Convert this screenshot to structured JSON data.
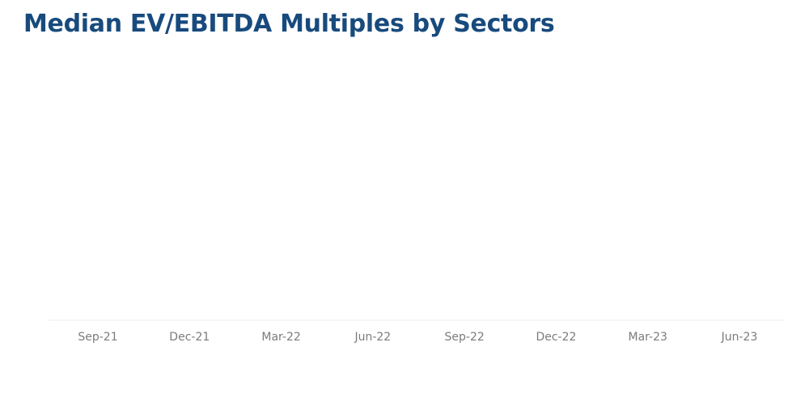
{
  "chart_data": {
    "type": "line",
    "title": "Median EV/EBITDA Multiples by Sectors",
    "xlabel": "",
    "ylabel": "",
    "x_ticks": [
      "Sep-21",
      "Dec-21",
      "Mar-22",
      "Jun-22",
      "Sep-22",
      "Dec-22",
      "Mar-23",
      "Jun-23"
    ],
    "series": [],
    "grid": false,
    "legend": "none"
  },
  "colors": {
    "title": "#184a7d",
    "axis_line": "#ececec",
    "tick_label": "#7b7b7b"
  }
}
